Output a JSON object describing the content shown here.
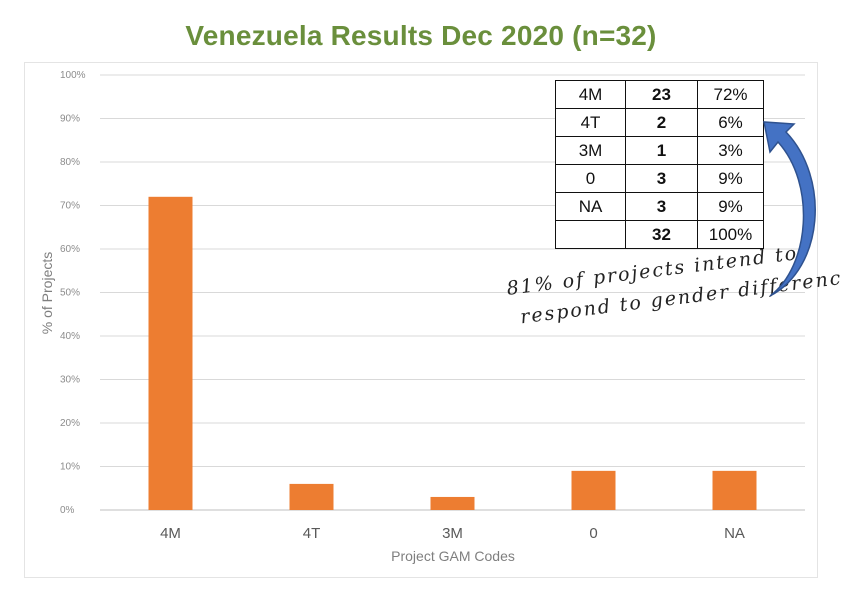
{
  "title": "Venezuela Results Dec 2020 (n=32)",
  "chart_data": {
    "type": "bar",
    "title": "Venezuela Results Dec 2020 (n=32)",
    "categories": [
      "4M",
      "4T",
      "3M",
      "0",
      "NA"
    ],
    "values": [
      72,
      6,
      3,
      9,
      9
    ],
    "xlabel": "Project GAM Codes",
    "ylabel": "% of Projects",
    "ylim": [
      0,
      100
    ],
    "yticks": [
      "0%",
      "10%",
      "20%",
      "30%",
      "40%",
      "50%",
      "60%",
      "70%",
      "80%",
      "90%",
      "100%"
    ],
    "grid": true,
    "bar_color": "#ed7d31"
  },
  "summary_table": {
    "rows": [
      {
        "code": "4M",
        "count": "23",
        "pct": "72%"
      },
      {
        "code": "4T",
        "count": "2",
        "pct": "6%"
      },
      {
        "code": "3M",
        "count": "1",
        "pct": "3%"
      },
      {
        "code": "0",
        "count": "3",
        "pct": "9%"
      },
      {
        "code": "NA",
        "count": "3",
        "pct": "9%"
      },
      {
        "code": "",
        "count": "32",
        "pct": "100%"
      }
    ]
  },
  "annotation": {
    "line1": "81% of projects intend to",
    "line2": "respond to gender differences"
  },
  "colors": {
    "title": "#6a8f3c",
    "bar": "#ed7d31",
    "arrow": "#3d6fb5",
    "gridline": "#d9d9d9"
  }
}
